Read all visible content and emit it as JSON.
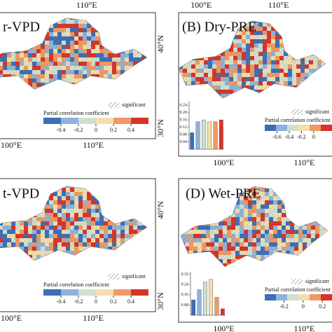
{
  "panels": [
    {
      "label": "r-VPD",
      "lon_top": [
        "110°E"
      ],
      "lon_bottom": [
        "100°E",
        "110°E"
      ],
      "lat": [
        "40°N",
        "30°N"
      ],
      "legend": {
        "significant": "significant",
        "title": "Partial correlation coefficient",
        "ticks": [
          -0.4,
          -0.2,
          0,
          0.2,
          0.4
        ],
        "range": [
          -0.6,
          0.6
        ]
      }
    },
    {
      "label": "(B) Dry-PRE",
      "lon_top": [
        "100°E",
        "110°E"
      ],
      "lon_bottom": [
        "100°E",
        "110°E"
      ],
      "lat": [],
      "legend": {
        "significant": "significant",
        "title": "Partial correlation coefficient",
        "ticks": [
          -0.6,
          -0.4,
          -0.2,
          0
        ],
        "range": [
          -0.8,
          0.3
        ]
      },
      "inset": {
        "ylim": [
          0,
          0.26
        ],
        "yticks": [
          0.04,
          0.08,
          0.12,
          0.16,
          {
            "value": 0.2,
            "label": "0.20"
          },
          0.24
        ],
        "values": [
          0.09,
          0.15,
          0.16,
          0.15,
          0.15,
          0.16
        ]
      }
    },
    {
      "label": "t-VPD",
      "lon_top": [],
      "lon_bottom": [
        "100°E",
        "110°E"
      ],
      "lat": [
        "40°N",
        "30°N"
      ],
      "legend": {
        "significant": "significant",
        "title": "Partial correlation coefficient",
        "ticks": [
          -0.4,
          -0.2,
          0,
          0.2,
          0.4
        ],
        "range": [
          -0.6,
          0.6
        ]
      }
    },
    {
      "label": "(D) Wet-PRE",
      "lon_top": [],
      "lon_bottom": [
        "100°E",
        "110°E"
      ],
      "lat": [],
      "legend": {
        "significant": "significant",
        "title": "Partial correlation coefficient",
        "ticks": [
          -0.2,
          0,
          0.2
        ],
        "range": [
          -0.4,
          0.3
        ]
      },
      "inset": {
        "ylim": [
          0,
          0.34
        ],
        "yticks": [
          0.08,
          0.16,
          0.24,
          0.32
        ],
        "values": [
          0.12,
          0.2,
          0.26,
          0.28,
          0.14,
          0.05
        ]
      }
    }
  ]
}
